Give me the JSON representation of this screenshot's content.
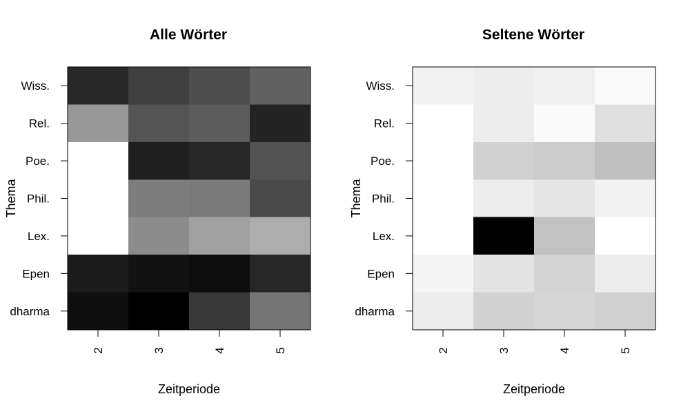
{
  "chart_data": [
    {
      "type": "heatmap",
      "title": "Alle Wörter",
      "xlabel": "Zeitperiode",
      "ylabel": "Thema",
      "x": [
        "2",
        "3",
        "4",
        "5"
      ],
      "y": [
        "Wiss.",
        "Rel.",
        "Poe.",
        "Phil.",
        "Lex.",
        "Epen",
        "dharma"
      ],
      "colormap": "grayscale (darker = higher)",
      "values": [
        [
          0.84,
          0.75,
          0.7,
          0.62
        ],
        [
          0.4,
          0.67,
          0.64,
          0.86
        ],
        [
          0.0,
          0.88,
          0.85,
          0.68
        ],
        [
          0.0,
          0.51,
          0.52,
          0.71
        ],
        [
          0.0,
          0.45,
          0.37,
          0.32
        ],
        [
          0.89,
          0.93,
          0.95,
          0.85
        ],
        [
          0.94,
          1.0,
          0.78,
          0.54
        ]
      ]
    },
    {
      "type": "heatmap",
      "title": "Seltene Wörter",
      "xlabel": "Zeitperiode",
      "ylabel": "Thema",
      "x": [
        "2",
        "3",
        "4",
        "5"
      ],
      "y": [
        "Wiss.",
        "Rel.",
        "Poe.",
        "Phil.",
        "Lex.",
        "Epen",
        "dharma"
      ],
      "colormap": "grayscale (darker = higher)",
      "values": [
        [
          0.05,
          0.07,
          0.06,
          0.02
        ],
        [
          0.0,
          0.07,
          0.02,
          0.12
        ],
        [
          0.0,
          0.18,
          0.2,
          0.25
        ],
        [
          0.0,
          0.07,
          0.1,
          0.05
        ],
        [
          0.0,
          1.0,
          0.24,
          0.0
        ],
        [
          0.04,
          0.11,
          0.17,
          0.07
        ],
        [
          0.07,
          0.18,
          0.16,
          0.18
        ]
      ]
    }
  ]
}
